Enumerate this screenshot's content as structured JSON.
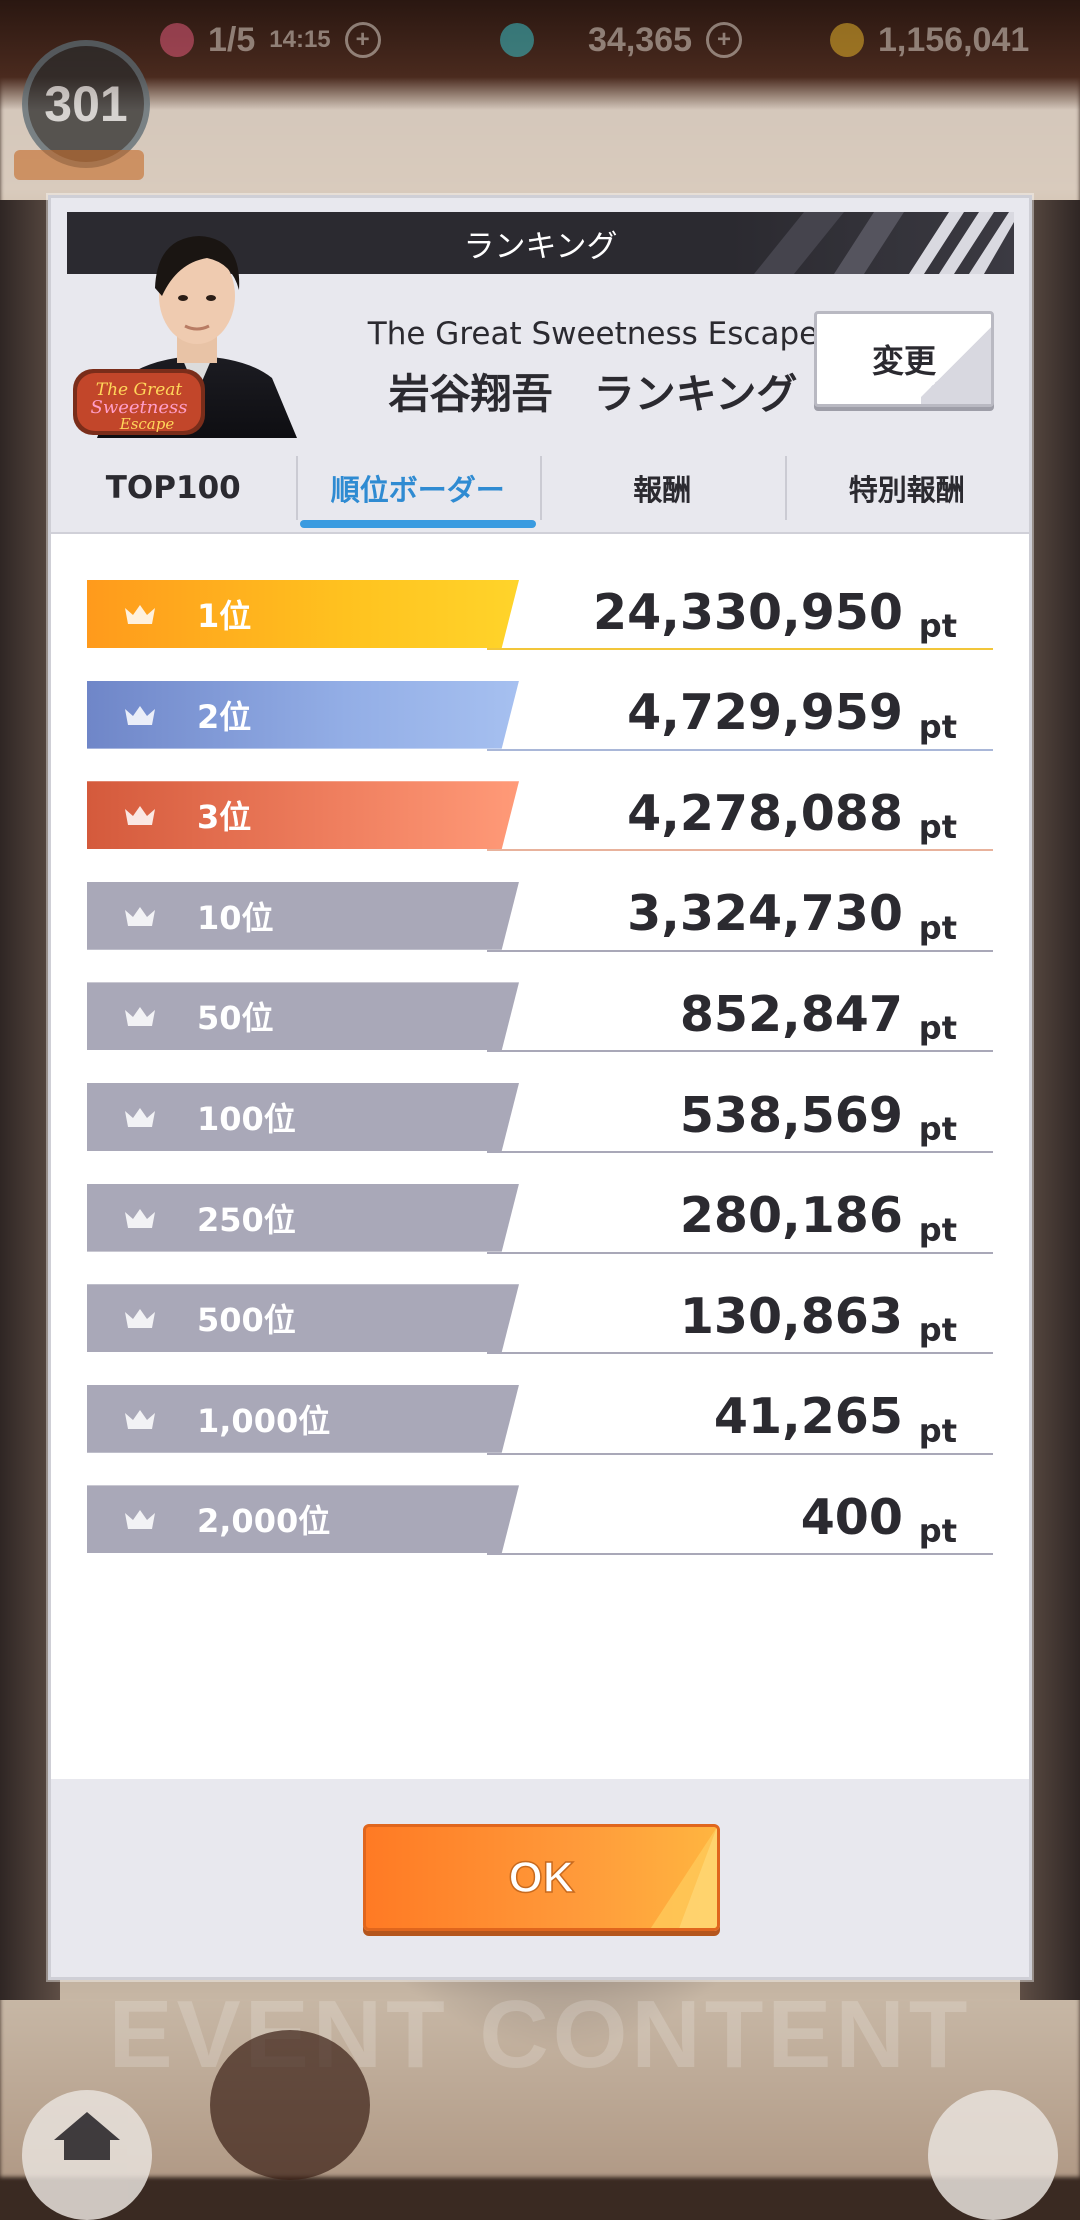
{
  "hud": {
    "level": "301",
    "stamina": "1/5",
    "stamina_timer": "14:15",
    "gems": "34,365",
    "coins": "1,156,041"
  },
  "background": {
    "banner_text": "EVENT CONTENT"
  },
  "modal": {
    "title": "ランキング",
    "event_name": "The Great Sweetness Escape",
    "ranking_name": "岩谷翔吾　ランキング",
    "change_label": "変更",
    "tabs": [
      {
        "label": "TOP100",
        "active": false
      },
      {
        "label": "順位ボーダー",
        "active": true
      },
      {
        "label": "報酬",
        "active": false
      },
      {
        "label": "特別報酬",
        "active": false
      }
    ],
    "unit": "pt",
    "rows": [
      {
        "rank": "1位",
        "points": "24,330,950",
        "tier": "gold"
      },
      {
        "rank": "2位",
        "points": "4,729,959",
        "tier": "silver"
      },
      {
        "rank": "3位",
        "points": "4,278,088",
        "tier": "bronze"
      },
      {
        "rank": "10位",
        "points": "3,324,730",
        "tier": "grey"
      },
      {
        "rank": "50位",
        "points": "852,847",
        "tier": "grey"
      },
      {
        "rank": "100位",
        "points": "538,569",
        "tier": "grey"
      },
      {
        "rank": "250位",
        "points": "280,186",
        "tier": "grey"
      },
      {
        "rank": "500位",
        "points": "130,863",
        "tier": "grey"
      },
      {
        "rank": "1,000位",
        "points": "41,265",
        "tier": "grey"
      },
      {
        "rank": "2,000位",
        "points": "400",
        "tier": "grey"
      }
    ],
    "ok_label": "OK"
  },
  "colors": {
    "gold": "#ffb020",
    "silver": "#7f95d4",
    "bronze": "#e0704a",
    "grey": "#a9a8b8",
    "tab_active": "#2f8bd2",
    "ok_button": "#ff8a2e"
  }
}
